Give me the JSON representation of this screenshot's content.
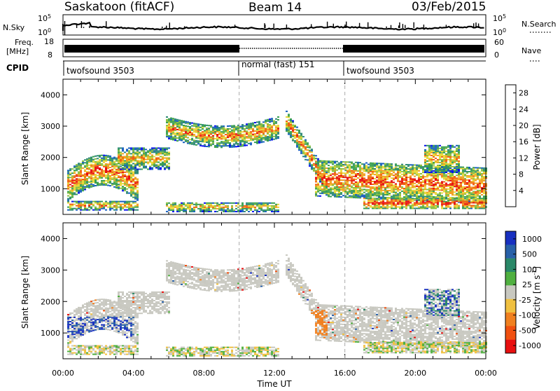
{
  "header": {
    "station": "Saskatoon (fitACF)",
    "beam": "Beam 14",
    "date": "03/Feb/2015"
  },
  "top_panels": {
    "nsky_label": "N.Sky",
    "nsky_top": "10^5",
    "nsky_bottom": "10^0",
    "nsearch_label": "N.Search",
    "nsearch_top": "10^5",
    "nsearch_bottom": "10^0",
    "freq_label_1": "Freq.",
    "freq_label_2": "[MHz]",
    "freq_top": "18",
    "freq_bottom": "8",
    "nave_label": "Nave",
    "nave_top": "60",
    "nave_bottom": "0",
    "cpid_label": "CPID",
    "cpid_segments": [
      "twofsound 3503",
      "normal (fast) 151",
      "twofsound 3503"
    ]
  },
  "colors": {
    "power_scale": [
      "#0a10f0",
      "#1860c0",
      "#2f8a78",
      "#3aa050",
      "#8ac040",
      "#e8d838",
      "#f0a020",
      "#f06010",
      "#e81010"
    ],
    "velocity_scale": [
      "#1830c0",
      "#2860a8",
      "#2a8868",
      "#50b040",
      "#c8c8c0",
      "#f0c040",
      "#f08020",
      "#f05010",
      "#e81010"
    ]
  },
  "chart_data": [
    {
      "type": "heatmap",
      "title": "",
      "xlabel": "",
      "ylabel": "Slant Range [km]",
      "xlim": [
        "00:00",
        "00:00"
      ],
      "ylim": [
        180,
        4500
      ],
      "x_ticks": [
        "00:00",
        "04:00",
        "08:00",
        "12:00",
        "16:00",
        "20:00",
        "00:00"
      ],
      "y_ticks": [
        1000,
        2000,
        3000,
        4000
      ],
      "colorbar": {
        "label": "Power [dB]",
        "ticks": [
          4,
          8,
          12,
          16,
          20,
          24,
          28
        ],
        "range": [
          0,
          30
        ]
      },
      "scatter_regions": [
        {
          "t_start": 0.5,
          "t_end": 4.0,
          "range_low": 800,
          "range_high": 1900,
          "value": "8-28 dB"
        },
        {
          "t_start": 5.8,
          "t_end": 12.3,
          "range_low": 2500,
          "range_high": 3400,
          "value": "4-16 dB"
        },
        {
          "t_start": 13.5,
          "t_end": 24.0,
          "range_low": 500,
          "range_high": 2000,
          "value": "4-28 dB"
        }
      ]
    },
    {
      "type": "heatmap",
      "title": "",
      "xlabel": "Time UT",
      "ylabel": "Slant Range [km]",
      "xlim": [
        "00:00",
        "00:00"
      ],
      "ylim": [
        180,
        4500
      ],
      "x_ticks": [
        "00:00",
        "04:00",
        "08:00",
        "12:00",
        "16:00",
        "20:00",
        "00:00"
      ],
      "y_ticks": [
        1000,
        2000,
        3000,
        4000
      ],
      "colorbar": {
        "label": "Velocity [m s^-1]",
        "ticks": [
          1000,
          500,
          100,
          25,
          -25,
          -100,
          -500,
          -1000
        ]
      }
    }
  ]
}
